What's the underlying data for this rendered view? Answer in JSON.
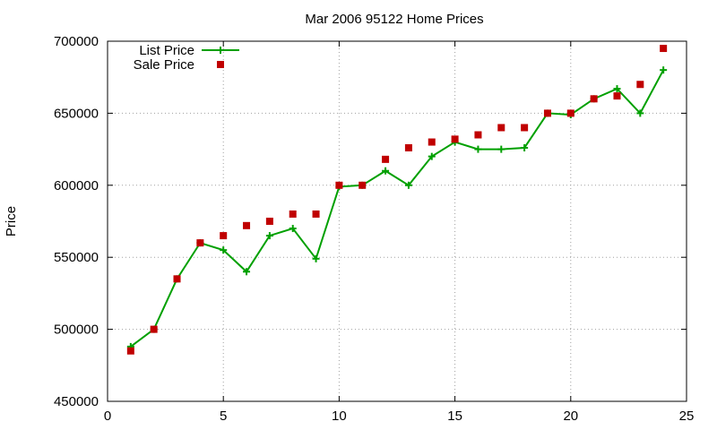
{
  "chart_data": {
    "type": "line",
    "title": "Mar 2006 95122 Home Prices",
    "xlabel": "",
    "ylabel": "Price",
    "xlim": [
      0,
      25
    ],
    "ylim": [
      450000,
      700000
    ],
    "x_ticks": [
      0,
      5,
      10,
      15,
      20,
      25
    ],
    "y_ticks": [
      450000,
      500000,
      550000,
      600000,
      650000,
      700000
    ],
    "grid": true,
    "legend_position": "top-left",
    "series": [
      {
        "name": "List Price",
        "style": "lines+points",
        "marker": "plus",
        "color": "#00a000",
        "x": [
          1,
          2,
          3,
          4,
          5,
          6,
          7,
          8,
          9,
          10,
          11,
          12,
          13,
          14,
          15,
          16,
          17,
          18,
          19,
          20,
          21,
          22,
          23,
          24
        ],
        "y": [
          488000,
          500000,
          535000,
          560000,
          555000,
          540000,
          565000,
          570000,
          549000,
          599000,
          600000,
          610000,
          600000,
          620000,
          630000,
          625000,
          625000,
          626000,
          650000,
          649000,
          660000,
          667000,
          650000,
          680000
        ]
      },
      {
        "name": "Sale Price",
        "style": "points",
        "marker": "square",
        "color": "#c00000",
        "x": [
          1,
          2,
          3,
          4,
          5,
          6,
          7,
          8,
          9,
          10,
          11,
          12,
          13,
          14,
          15,
          16,
          17,
          18,
          19,
          20,
          21,
          22,
          23,
          24
        ],
        "y": [
          485000,
          500000,
          535000,
          560000,
          565000,
          572000,
          575000,
          580000,
          580000,
          600000,
          600000,
          618000,
          626000,
          630000,
          632000,
          635000,
          640000,
          640000,
          650000,
          650000,
          660000,
          662000,
          670000,
          695000
        ]
      }
    ]
  }
}
